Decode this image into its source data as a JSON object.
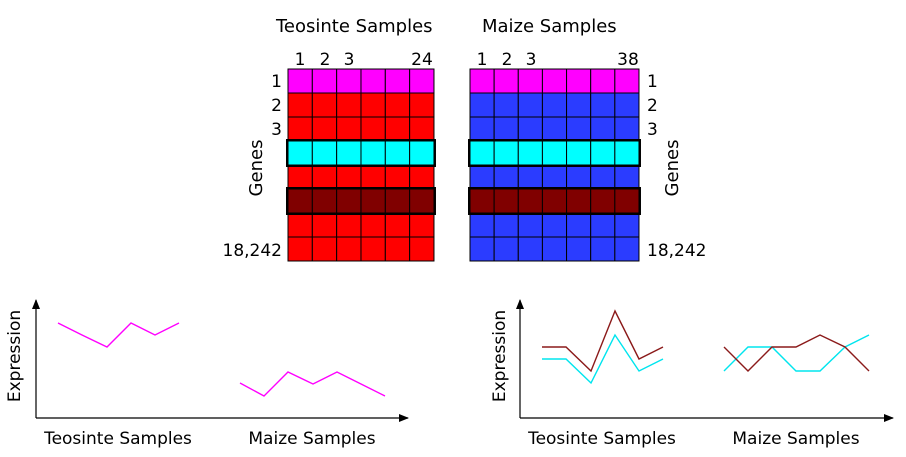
{
  "heatmaps": {
    "teosinte": {
      "title": "Teosinte Samples",
      "col_labels": [
        "1",
        "2",
        "3",
        "24"
      ],
      "row_labels": [
        "1",
        "2",
        "3",
        "18,242"
      ],
      "axis_label": "Genes",
      "cols": 6,
      "rows": 8,
      "row_colors": [
        "#ff00ff",
        "#ff0000",
        "#ff0000",
        "#00ffff",
        "#ff0000",
        "#800000",
        "#ff0000",
        "#ff0000"
      ]
    },
    "maize": {
      "title": "Maize Samples",
      "col_labels": [
        "1",
        "2",
        "3",
        "38"
      ],
      "row_labels": [
        "1",
        "2",
        "3",
        "18,242"
      ],
      "axis_label": "Genes",
      "cols": 7,
      "rows": 8,
      "row_colors": [
        "#ff00ff",
        "#2b3cff",
        "#2b3cff",
        "#00ffff",
        "#2b3cff",
        "#800000",
        "#2b3cff",
        "#2b3cff"
      ]
    }
  },
  "plots": {
    "left": {
      "ylabel": "Expression",
      "xlabel_a": "Teosinte Samples",
      "xlabel_b": "Maize Samples"
    },
    "right": {
      "ylabel": "Expression",
      "xlabel_a": "Teosinte Samples",
      "xlabel_b": "Maize Samples"
    }
  },
  "colors": {
    "magenta": "#ff00ff",
    "cyan": "#00e5ee",
    "dark_red": "#8b1a1a",
    "grid": "#000000"
  }
}
